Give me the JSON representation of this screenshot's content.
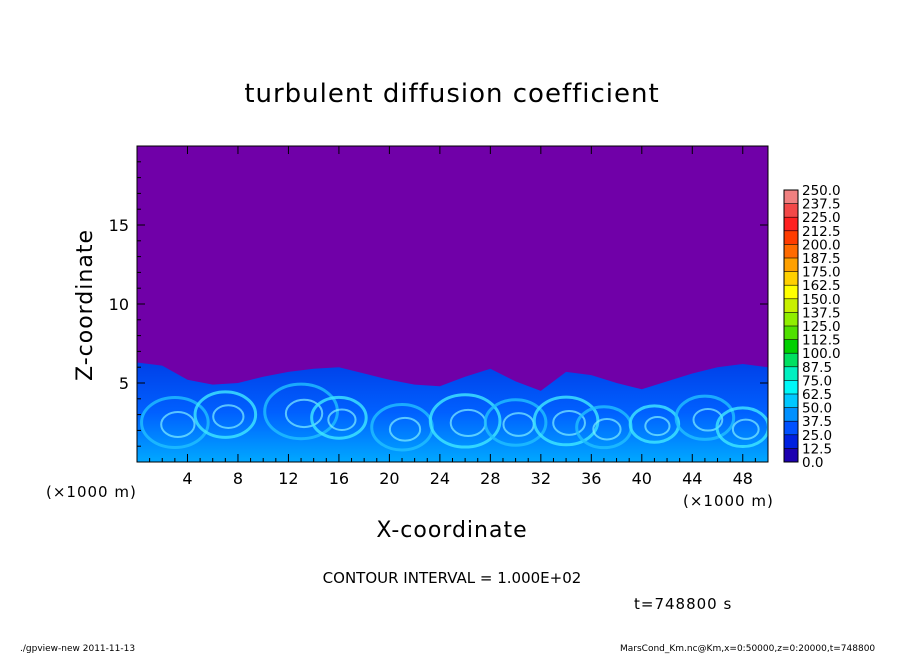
{
  "chart_data": {
    "type": "heatmap",
    "title": "turbulent diffusion coefficient",
    "xlabel": "X-coordinate",
    "ylabel": "Z-coordinate",
    "x_unit_left": "(×1000 m)",
    "x_unit_right": "(×1000 m)",
    "xlim": [
      0,
      50
    ],
    "ylim": [
      0,
      20
    ],
    "x_ticks": [
      4,
      8,
      12,
      16,
      20,
      24,
      28,
      32,
      36,
      40,
      44,
      48
    ],
    "y_ticks": [
      5,
      10,
      15
    ],
    "colorbar_levels": [
      "250.0",
      "237.5",
      "225.0",
      "212.5",
      "200.0",
      "187.5",
      "175.0",
      "162.5",
      "150.0",
      "137.5",
      "125.0",
      "112.5",
      "100.0",
      "87.5",
      "75.0",
      "62.5",
      "50.0",
      "37.5",
      "25.0",
      "12.5",
      "0.0"
    ],
    "colorbar_colors": [
      "#f08080",
      "#f24848",
      "#ff2020",
      "#ff3c00",
      "#ff6a00",
      "#ffa000",
      "#ffd000",
      "#ffff00",
      "#c8f000",
      "#90ee00",
      "#50e000",
      "#00d000",
      "#00e060",
      "#00f0c0",
      "#00f8f8",
      "#00c8ff",
      "#0090ff",
      "#0050ff",
      "#0020e0",
      "#1c00b0"
    ],
    "background_color": "#7000a8",
    "boundary_layer_top": [
      [
        0,
        6.3
      ],
      [
        2,
        6.1
      ],
      [
        4,
        5.2
      ],
      [
        6,
        4.9
      ],
      [
        8,
        5.0
      ],
      [
        10,
        5.4
      ],
      [
        12,
        5.7
      ],
      [
        14,
        5.9
      ],
      [
        16,
        6.0
      ],
      [
        18,
        5.6
      ],
      [
        20,
        5.2
      ],
      [
        22,
        4.9
      ],
      [
        24,
        4.8
      ],
      [
        26,
        5.4
      ],
      [
        28,
        5.9
      ],
      [
        30,
        5.1
      ],
      [
        32,
        4.5
      ],
      [
        34,
        5.7
      ],
      [
        36,
        5.5
      ],
      [
        38,
        5.0
      ],
      [
        40,
        4.6
      ],
      [
        42,
        5.1
      ],
      [
        44,
        5.6
      ],
      [
        46,
        6.0
      ],
      [
        48,
        6.2
      ],
      [
        50,
        6.0
      ]
    ],
    "contour_interval": "CONTOUR INTERVAL = 1.000E+02",
    "time_label": "t=748800  s"
  },
  "footer": {
    "left": "./gpview-new  2011-11-13",
    "right": "MarsCond_Km.nc@Km,x=0:50000,z=0:20000,t=748800"
  }
}
